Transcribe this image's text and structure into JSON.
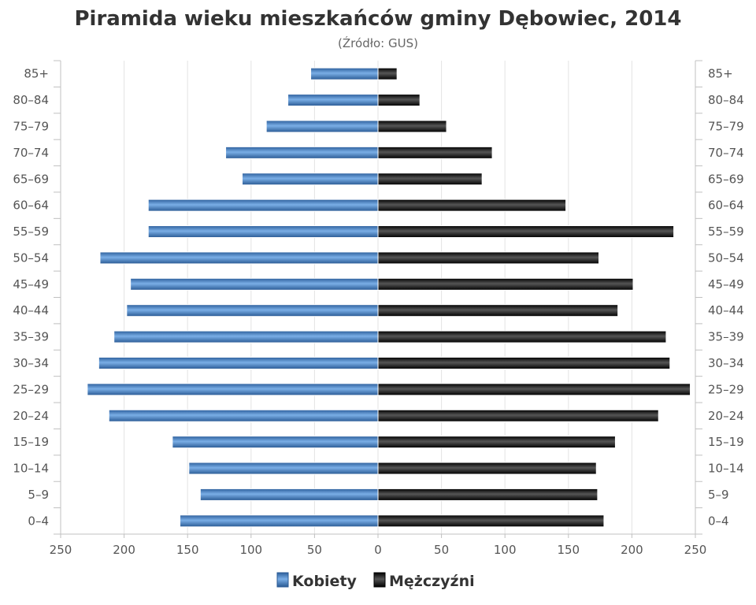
{
  "chart_data": {
    "type": "bar",
    "orientation": "horizontal-pyramid",
    "title": "Piramida wieku mieszkańców gminy Dębowiec, 2014",
    "subtitle": "(Źródło: GUS)",
    "categories": [
      "0–4",
      "5–9",
      "10–14",
      "15–19",
      "20–24",
      "25–29",
      "30–34",
      "35–39",
      "40–44",
      "45–49",
      "50–54",
      "55–59",
      "60–64",
      "65–69",
      "70–74",
      "75–79",
      "80–84",
      "85+"
    ],
    "x_ticks": [
      "250",
      "200",
      "150",
      "100",
      "50",
      "0",
      "50",
      "100",
      "150",
      "200",
      "250"
    ],
    "xlim": [
      -250,
      250
    ],
    "grid": true,
    "legend_position": "bottom",
    "series": [
      {
        "name": "Kobiety",
        "color": "#4a7fbf",
        "values": [
          156,
          140,
          149,
          162,
          212,
          229,
          220,
          208,
          198,
          195,
          219,
          181,
          181,
          107,
          120,
          88,
          71,
          53
        ]
      },
      {
        "name": "Mężczyźni",
        "color": "#1a1a1a",
        "values": [
          178,
          173,
          172,
          187,
          221,
          246,
          230,
          227,
          189,
          201,
          174,
          233,
          148,
          82,
          90,
          54,
          33,
          15
        ]
      }
    ]
  }
}
